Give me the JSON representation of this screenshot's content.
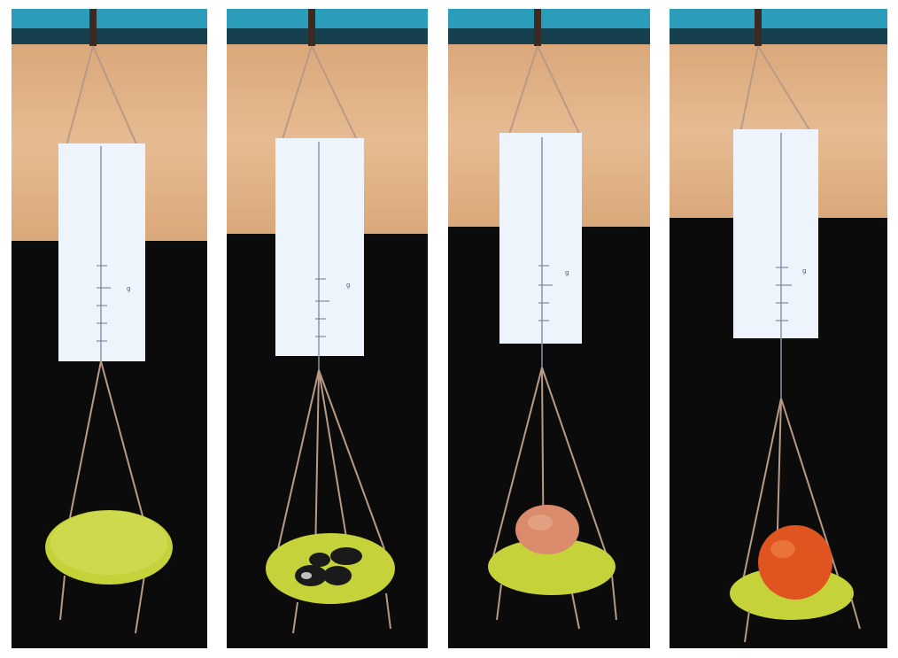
{
  "figure": {
    "description_hidden": "",
    "panels": [
      {
        "id": "panel-1",
        "load": "empty-pan",
        "scale_marks": [
          "g",
          "",
          "",
          "",
          ""
        ],
        "pan_color": "#c6d23a"
      },
      {
        "id": "panel-2",
        "load": "metal-weights",
        "scale_marks": [
          "g",
          "",
          "",
          "",
          ""
        ],
        "pan_color": "#c6d23a"
      },
      {
        "id": "panel-3",
        "load": "egg",
        "scale_marks": [
          "g",
          "",
          "",
          "",
          ""
        ],
        "pan_color": "#c6d23a"
      },
      {
        "id": "panel-4",
        "load": "tomato",
        "scale_marks": [
          "g",
          "",
          "",
          "",
          ""
        ],
        "pan_color": "#c6d23a"
      }
    ]
  },
  "colors": {
    "wood": "#e2b48a",
    "rail": "#2b9dbb",
    "background": "#0b0b0b",
    "card": "#eef4fb",
    "string": "#b99a86",
    "egg": "#d98b6c",
    "tomato": "#e0541f"
  }
}
